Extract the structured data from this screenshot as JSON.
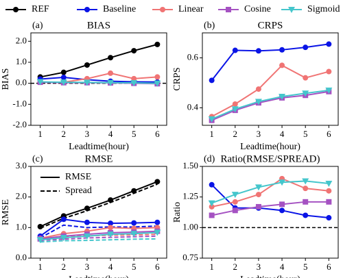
{
  "chart_data": [
    {
      "type": "line",
      "label": "(a)",
      "title": "BIAS",
      "xlabel": "Leadtime(hour)",
      "ylabel": "BIAS",
      "x": [
        1,
        2,
        3,
        4,
        5,
        6
      ],
      "xlim": [
        0.6,
        6.4
      ],
      "xticks": [
        1,
        2,
        3,
        4,
        5,
        6
      ],
      "ylim": [
        -2,
        2.4
      ],
      "yticks": [
        {
          "value": -2,
          "label": "-2.0"
        },
        {
          "value": -1,
          "label": "-1.0"
        },
        {
          "value": 0,
          "label": "0.0"
        },
        {
          "value": 1,
          "label": "1.0"
        },
        {
          "value": 2,
          "label": "2.0"
        }
      ],
      "reference_line": 0,
      "series": [
        {
          "name": "REF",
          "color": "#000000",
          "marker": "circle",
          "values": [
            0.3,
            0.52,
            0.87,
            1.22,
            1.55,
            1.85
          ]
        },
        {
          "name": "Baseline",
          "color": "#0a14e6",
          "marker": "circle",
          "values": [
            0.2,
            0.28,
            0.17,
            0.1,
            0.07,
            0.06
          ]
        },
        {
          "name": "Linear",
          "color": "#f07474",
          "marker": "circle",
          "values": [
            0.05,
            0.05,
            0.22,
            0.48,
            0.22,
            0.3
          ]
        },
        {
          "name": "Cosine",
          "color": "#a552c2",
          "marker": "square",
          "values": [
            0.05,
            0.03,
            0.03,
            0.02,
            0.0,
            -0.02
          ]
        },
        {
          "name": "Sigmoid",
          "color": "#45c6cc",
          "marker": "triangle",
          "values": [
            0.07,
            0.05,
            0.04,
            0.03,
            0.02,
            0.0
          ]
        }
      ]
    },
    {
      "type": "line",
      "label": "(b)",
      "title": "CRPS",
      "xlabel": "Leadtime(hour)",
      "ylabel": "CRPS",
      "x": [
        1,
        2,
        3,
        4,
        5,
        6
      ],
      "xlim": [
        0.6,
        6.4
      ],
      "xticks": [
        1,
        2,
        3,
        4,
        5,
        6
      ],
      "ylim": [
        0.33,
        0.7
      ],
      "yticks": [
        0.4,
        0.6
      ],
      "series": [
        {
          "name": "Baseline",
          "color": "#0a14e6",
          "marker": "circle",
          "values": [
            0.51,
            0.63,
            0.628,
            0.632,
            0.642,
            0.655
          ]
        },
        {
          "name": "Linear",
          "color": "#f07474",
          "marker": "circle",
          "values": [
            0.365,
            0.415,
            0.475,
            0.57,
            0.52,
            0.545
          ]
        },
        {
          "name": "Cosine",
          "color": "#a552c2",
          "marker": "square",
          "values": [
            0.35,
            0.39,
            0.42,
            0.44,
            0.45,
            0.465
          ]
        },
        {
          "name": "Sigmoid",
          "color": "#45c6cc",
          "marker": "triangle",
          "values": [
            0.355,
            0.395,
            0.425,
            0.445,
            0.458,
            0.47
          ]
        }
      ]
    },
    {
      "type": "line",
      "label": "(c)",
      "title": "RMSE",
      "xlabel": "Leadtime(hour)",
      "ylabel": "RMSE",
      "x": [
        1,
        2,
        3,
        4,
        5,
        6
      ],
      "xlim": [
        0.6,
        6.4
      ],
      "xticks": [
        1,
        2,
        3,
        4,
        5,
        6
      ],
      "ylim": [
        0,
        3
      ],
      "yticks": [
        {
          "value": 0,
          "label": "0.0"
        },
        {
          "value": 1,
          "label": "1.0"
        },
        {
          "value": 2,
          "label": "2.0"
        },
        {
          "value": 3,
          "label": "3.0"
        }
      ],
      "style_legend": [
        "RMSE",
        "Spread"
      ],
      "series": [
        {
          "name": "REF",
          "color": "#000000",
          "marker": "circle",
          "values": [
            1.03,
            1.38,
            1.63,
            1.9,
            2.2,
            2.5
          ],
          "spread": [
            0.98,
            1.3,
            1.55,
            1.82,
            2.12,
            2.42
          ]
        },
        {
          "name": "Baseline",
          "color": "#0a14e6",
          "marker": "circle",
          "values": [
            0.72,
            1.27,
            1.17,
            1.14,
            1.15,
            1.17
          ],
          "spread": [
            0.66,
            1.08,
            1.0,
            1.02,
            1.02,
            1.05
          ]
        },
        {
          "name": "Linear",
          "color": "#f07474",
          "marker": "circle",
          "values": [
            0.65,
            0.8,
            0.88,
            1.0,
            0.97,
            1.0
          ],
          "spread": [
            0.6,
            0.7,
            0.73,
            0.75,
            0.76,
            0.78
          ]
        },
        {
          "name": "Cosine",
          "color": "#a552c2",
          "marker": "square",
          "values": [
            0.63,
            0.72,
            0.78,
            0.83,
            0.85,
            0.88
          ],
          "spread": [
            0.58,
            0.62,
            0.66,
            0.68,
            0.7,
            0.72
          ]
        },
        {
          "name": "Sigmoid",
          "color": "#45c6cc",
          "marker": "triangle",
          "values": [
            0.6,
            0.67,
            0.72,
            0.78,
            0.8,
            0.84
          ],
          "spread": [
            0.53,
            0.57,
            0.58,
            0.6,
            0.62,
            0.63
          ]
        }
      ]
    },
    {
      "type": "line",
      "label": "(d)",
      "title": "Ratio(RMSE/SPREAD)",
      "xlabel": "Leadtime(hour)",
      "ylabel": "Ratio",
      "x": [
        1,
        2,
        3,
        4,
        5,
        6
      ],
      "xlim": [
        0.6,
        6.4
      ],
      "xticks": [
        1,
        2,
        3,
        4,
        5,
        6
      ],
      "ylim": [
        0.75,
        1.5
      ],
      "yticks": [
        {
          "value": 0.75,
          "label": "0.75"
        },
        {
          "value": 1,
          "label": "1.00"
        },
        {
          "value": 1.25,
          "label": "1.25"
        },
        {
          "value": 1.5,
          "label": "1.50"
        }
      ],
      "reference_line": 1,
      "series": [
        {
          "name": "Baseline",
          "color": "#0a14e6",
          "marker": "circle",
          "values": [
            1.35,
            1.16,
            1.16,
            1.14,
            1.1,
            1.08
          ]
        },
        {
          "name": "Linear",
          "color": "#f07474",
          "marker": "circle",
          "values": [
            1.17,
            1.21,
            1.27,
            1.4,
            1.32,
            1.3
          ]
        },
        {
          "name": "Cosine",
          "color": "#a552c2",
          "marker": "square",
          "values": [
            1.1,
            1.14,
            1.17,
            1.19,
            1.21,
            1.21
          ]
        },
        {
          "name": "Sigmoid",
          "color": "#45c6cc",
          "marker": "triangle",
          "values": [
            1.2,
            1.27,
            1.33,
            1.37,
            1.38,
            1.36
          ]
        }
      ]
    }
  ]
}
